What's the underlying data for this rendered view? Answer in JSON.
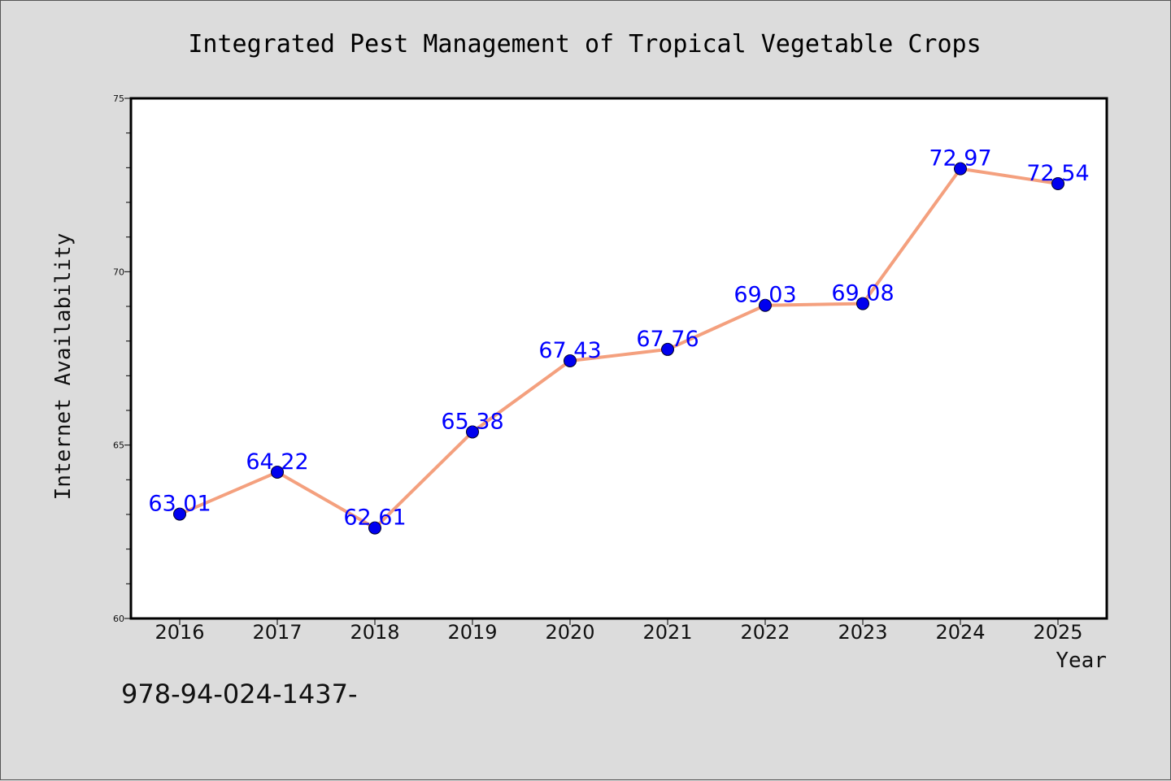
{
  "chart_data": {
    "type": "line",
    "title": "Integrated Pest Management of Tropical Vegetable Crops",
    "xlabel": "Year",
    "ylabel": "Internet Availability",
    "categories": [
      "2016",
      "2017",
      "2018",
      "2019",
      "2020",
      "2021",
      "2022",
      "2023",
      "2024",
      "2025"
    ],
    "series": [
      {
        "values": [
          63.01,
          64.22,
          62.61,
          65.38,
          67.43,
          67.76,
          69.03,
          69.08,
          72.97,
          72.54
        ],
        "data_labels": [
          "63.01",
          "64.22",
          "62.61",
          "65.38",
          "67.43",
          "67.76",
          "69.03",
          "69.08",
          "72.97",
          "72.54"
        ]
      }
    ],
    "ylim": [
      60,
      75
    ],
    "yticks": [
      "60",
      "65",
      "70",
      "75"
    ],
    "grid": false,
    "legend": "none",
    "colors": {
      "line": "#f4a07e",
      "marker": "#0000ee",
      "label": "#0000ff",
      "background": "#dcdcdc",
      "plot_bg": "#ffffff"
    }
  },
  "footnote": "978-94-024-1437-"
}
